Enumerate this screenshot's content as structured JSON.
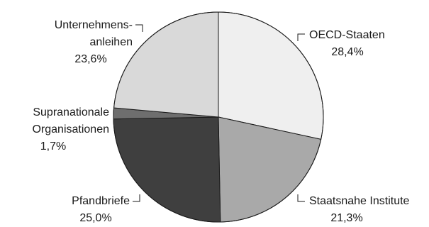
{
  "chart_data": {
    "type": "pie",
    "start_angle_deg": 0,
    "direction": "clockwise",
    "slices": [
      {
        "label_lines": [
          "OECD-Staaten"
        ],
        "value_text": "28,4%",
        "value": 28.4,
        "color": "#efefef"
      },
      {
        "label_lines": [
          "Staatsnahe Institute"
        ],
        "value_text": "21,3%",
        "value": 21.3,
        "color": "#a9a9a9"
      },
      {
        "label_lines": [
          "Pfandbriefe"
        ],
        "value_text": "25,0%",
        "value": 25.0,
        "color": "#3f3f3f"
      },
      {
        "label_lines": [
          "Supranationale",
          "Organisationen"
        ],
        "value_text": "1,7%",
        "value": 1.7,
        "color": "#6e6e6e"
      },
      {
        "label_lines": [
          "Unternehmens-",
          "anleihen"
        ],
        "value_text": "23,6%",
        "value": 23.6,
        "color": "#d9d9d9"
      }
    ]
  }
}
